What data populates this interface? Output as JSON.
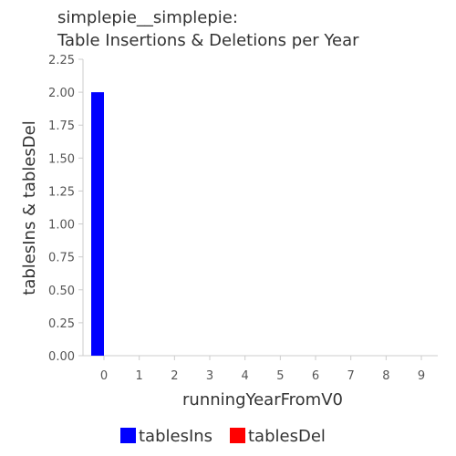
{
  "chart_data": {
    "type": "bar",
    "title": [
      "simplepie__simplepie:",
      "Table Insertions & Deletions per Year"
    ],
    "xlabel": "runningYearFromV0",
    "ylabel": "tablesIns & tablesDel",
    "categories": [
      "0",
      "1",
      "2",
      "3",
      "4",
      "5",
      "6",
      "7",
      "8",
      "9"
    ],
    "series": [
      {
        "name": "tablesIns",
        "color": "#0000ff",
        "values": [
          2,
          0,
          0,
          0,
          0,
          0,
          0,
          0,
          0,
          0
        ]
      },
      {
        "name": "tablesDel",
        "color": "#ff0000",
        "values": [
          0,
          0,
          0,
          0,
          0,
          0,
          0,
          0,
          0,
          0
        ]
      }
    ],
    "ylim": [
      0,
      2.25
    ],
    "yticks": [
      "0.00",
      "0.25",
      "0.50",
      "0.75",
      "1.00",
      "1.25",
      "1.50",
      "1.75",
      "2.00",
      "2.25"
    ],
    "grid": false,
    "legend_position": "bottom"
  }
}
